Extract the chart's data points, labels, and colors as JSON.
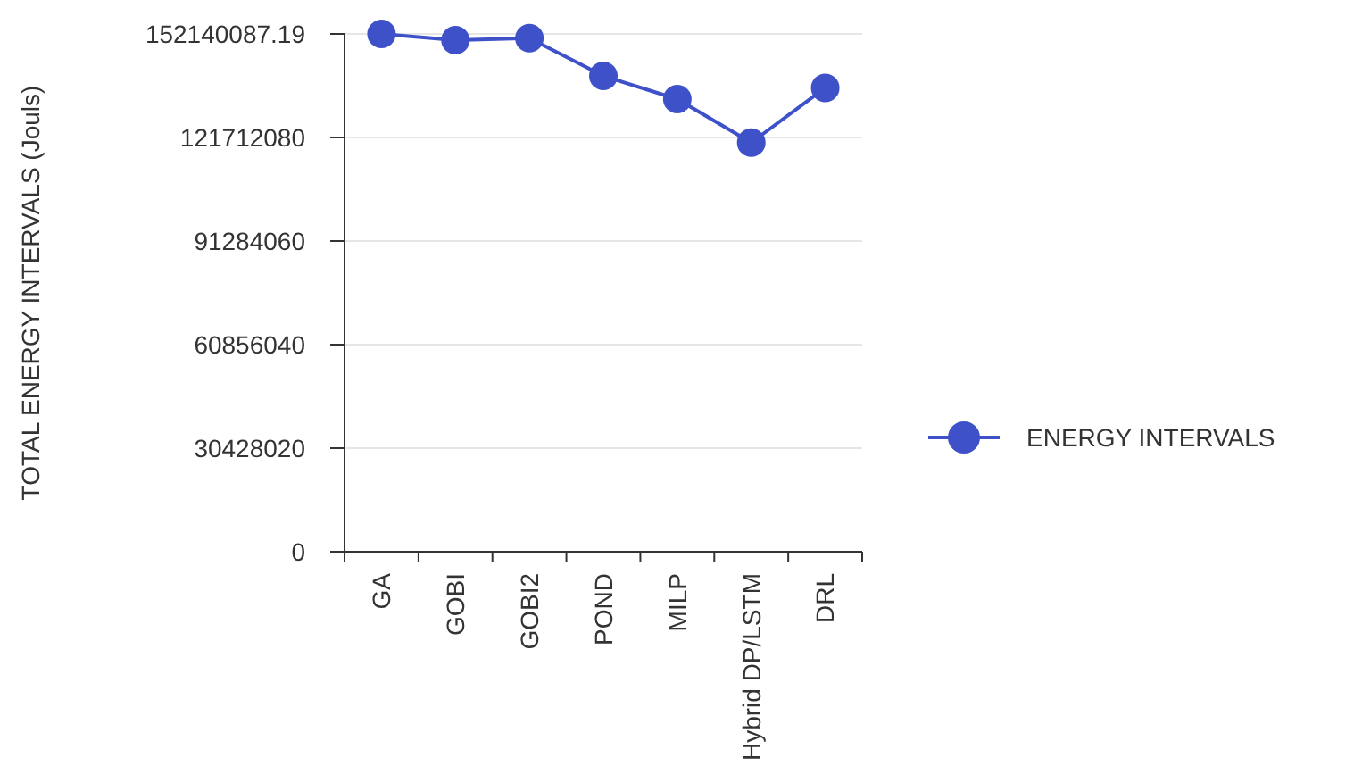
{
  "chart_data": {
    "type": "line",
    "ylabel": "TOTAL ENERGY INTERVALS (Jouls)",
    "categories": [
      "GA",
      "GOBI",
      "GOBI2",
      "POND",
      "MILP",
      "Hybrid DP/LSTM",
      "DRL"
    ],
    "series": [
      {
        "name": "ENERGY INTERVALS",
        "color": "#3f51c9",
        "values": [
          152140087.19,
          150300000,
          150900000,
          139800000,
          133000000,
          120200000,
          136300000
        ]
      }
    ],
    "ylim": [
      0,
      152140087.19
    ],
    "yticks": [
      0,
      30428020,
      60856040,
      91284060,
      121712080,
      152140087.19
    ],
    "grid": "y",
    "legend": "right",
    "marker": "circle",
    "line_style": "solid"
  }
}
